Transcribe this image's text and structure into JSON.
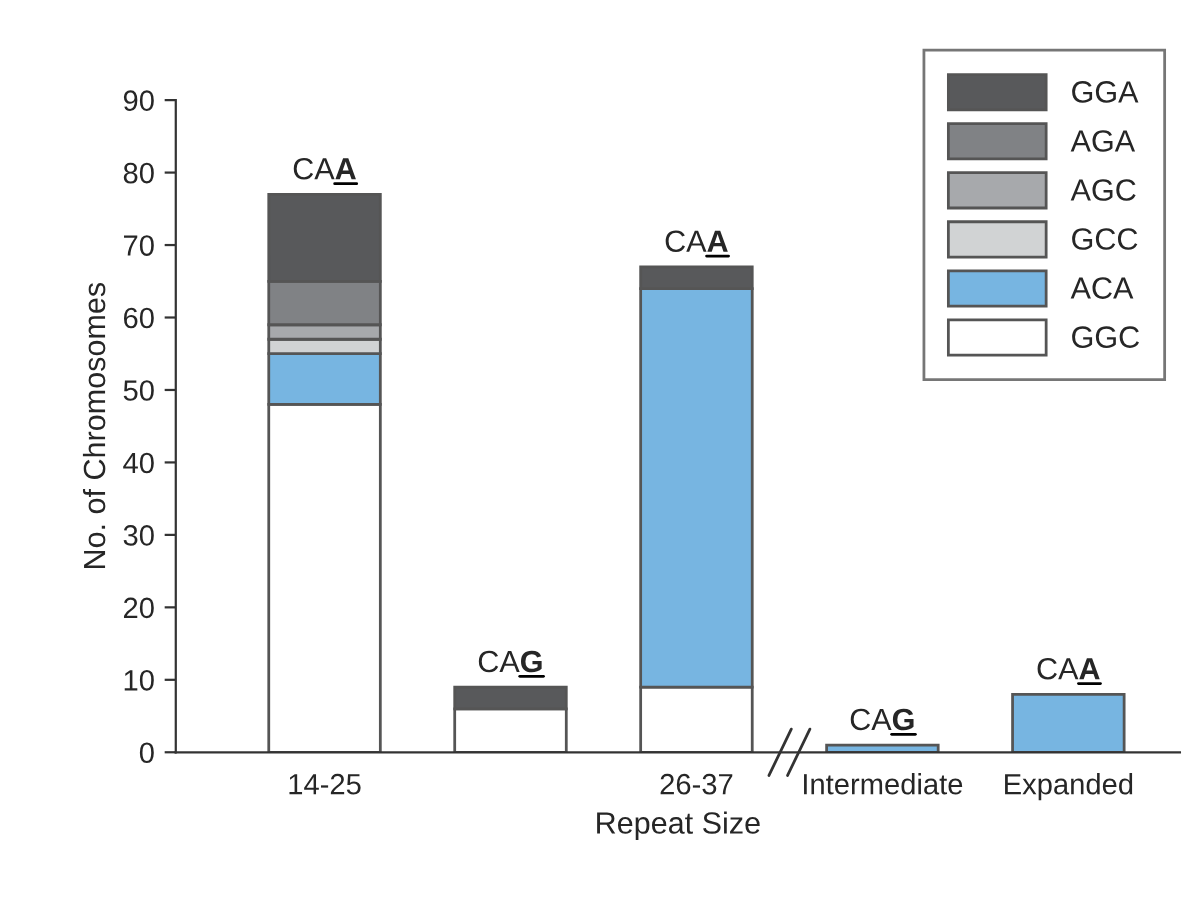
{
  "chart_data": {
    "type": "bar",
    "stacked": true,
    "xlabel": "Repeat Size",
    "ylabel": "No. of Chromosomes",
    "categories": [
      "14-25",
      null,
      "26-37",
      "Intermediate",
      "Expanded"
    ],
    "series": [
      {
        "name": "GGC",
        "color": "#ffffff",
        "values": [
          48,
          6,
          9,
          null,
          null
        ]
      },
      {
        "name": "ACA",
        "color": "#77b5e1",
        "values": [
          7,
          null,
          55,
          1,
          8
        ]
      },
      {
        "name": "GCC",
        "color": "#d1d3d4",
        "values": [
          2,
          null,
          null,
          null,
          null
        ]
      },
      {
        "name": "AGC",
        "color": "#a7a9ac",
        "values": [
          2,
          null,
          null,
          null,
          null
        ]
      },
      {
        "name": "AGA",
        "color": "#808285",
        "values": [
          6,
          null,
          null,
          null,
          null
        ]
      },
      {
        "name": "GGA",
        "color": "#58595b",
        "values": [
          12,
          3,
          3,
          null,
          null
        ]
      }
    ],
    "annotations": [
      "CAA",
      "CAG",
      "CAA",
      "CAG",
      "CAA"
    ],
    "ylim": [
      0,
      90
    ],
    "yticks": [
      0,
      10,
      20,
      30,
      40,
      50,
      60,
      70,
      80,
      90
    ],
    "grid": false,
    "legend": "top right"
  }
}
